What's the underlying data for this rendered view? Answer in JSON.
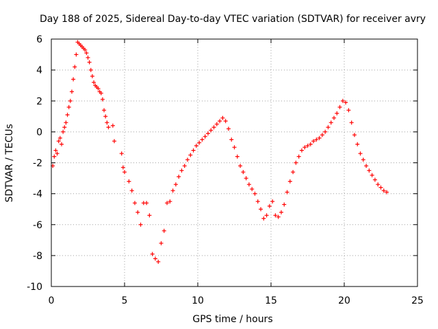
{
  "chart_data": {
    "type": "scatter",
    "title": "Day 188 of 2025, Sidereal Day-to-day VTEC variation (SDTVAR) for receiver avry",
    "xlabel": "GPS time / hours",
    "ylabel": "SDTVAR / TECUs",
    "xlim": [
      0,
      25
    ],
    "ylim": [
      -10,
      6
    ],
    "xticks": [
      0,
      5,
      10,
      15,
      20,
      25
    ],
    "yticks": [
      -10,
      -8,
      -6,
      -4,
      -2,
      0,
      2,
      4,
      6
    ],
    "grid": true,
    "marker": "+",
    "series_color": "#ff0000",
    "series": [
      {
        "name": "SDTVAR",
        "x": [
          0.1,
          0.2,
          0.3,
          0.4,
          0.5,
          0.6,
          0.7,
          0.8,
          0.9,
          1.0,
          1.1,
          1.2,
          1.3,
          1.4,
          1.5,
          1.6,
          1.7,
          1.8,
          1.9,
          2.0,
          2.1,
          2.2,
          2.3,
          2.4,
          2.5,
          2.6,
          2.7,
          2.8,
          2.9,
          3.0,
          3.1,
          3.2,
          3.3,
          3.4,
          3.5,
          3.6,
          3.7,
          3.8,
          3.9,
          4.2,
          4.3,
          4.8,
          4.9,
          5.0,
          5.3,
          5.5,
          5.7,
          5.9,
          6.1,
          6.3,
          6.5,
          6.7,
          6.9,
          7.1,
          7.3,
          7.5,
          7.7,
          7.9,
          8.1,
          8.3,
          8.5,
          8.7,
          8.9,
          9.1,
          9.3,
          9.5,
          9.7,
          9.9,
          10.1,
          10.3,
          10.5,
          10.7,
          10.9,
          11.1,
          11.3,
          11.5,
          11.7,
          11.9,
          12.1,
          12.3,
          12.5,
          12.7,
          12.9,
          13.1,
          13.3,
          13.5,
          13.7,
          13.9,
          14.1,
          14.3,
          14.5,
          14.7,
          14.9,
          15.1,
          15.3,
          15.5,
          15.7,
          15.9,
          16.1,
          16.3,
          16.5,
          16.7,
          16.9,
          17.1,
          17.3,
          17.5,
          17.7,
          17.9,
          18.1,
          18.3,
          18.5,
          18.7,
          18.9,
          19.1,
          19.3,
          19.5,
          19.7,
          19.9,
          20.1,
          20.3,
          20.5,
          20.7,
          20.9,
          21.1,
          21.3,
          21.5,
          21.7,
          21.9,
          22.1,
          22.3,
          22.5,
          22.7,
          22.9
        ],
        "y": [
          -2.2,
          -1.6,
          -1.2,
          -1.4,
          -0.6,
          -0.4,
          -0.8,
          0.0,
          0.3,
          0.6,
          1.1,
          1.6,
          2.0,
          2.6,
          3.4,
          4.2,
          5.0,
          5.8,
          5.7,
          5.6,
          5.5,
          5.4,
          5.3,
          5.1,
          4.8,
          4.5,
          4.0,
          3.6,
          3.2,
          3.0,
          2.9,
          2.8,
          2.6,
          2.5,
          2.1,
          1.4,
          1.0,
          0.6,
          0.3,
          0.4,
          -0.6,
          -1.4,
          -2.3,
          -2.6,
          -3.2,
          -3.8,
          -4.6,
          -5.2,
          -6.0,
          -4.6,
          -4.6,
          -5.4,
          -7.9,
          -8.2,
          -8.4,
          -7.2,
          -6.4,
          -4.6,
          -4.5,
          -3.8,
          -3.4,
          -2.9,
          -2.5,
          -2.2,
          -1.8,
          -1.5,
          -1.2,
          -0.9,
          -0.7,
          -0.5,
          -0.3,
          -0.1,
          0.1,
          0.3,
          0.5,
          0.7,
          0.9,
          0.7,
          0.2,
          -0.5,
          -1.0,
          -1.6,
          -2.2,
          -2.6,
          -3.0,
          -3.4,
          -3.7,
          -4.0,
          -4.5,
          -5.0,
          -5.6,
          -5.4,
          -4.8,
          -4.5,
          -5.4,
          -5.5,
          -5.2,
          -4.7,
          -3.9,
          -3.2,
          -2.6,
          -2.0,
          -1.6,
          -1.2,
          -1.0,
          -0.9,
          -0.8,
          -0.6,
          -0.5,
          -0.4,
          -0.2,
          0.0,
          0.3,
          0.6,
          0.9,
          1.2,
          1.6,
          2.0,
          1.9,
          1.4,
          0.6,
          -0.2,
          -0.8,
          -1.4,
          -1.8,
          -2.2,
          -2.5,
          -2.8,
          -3.1,
          -3.4,
          -3.6,
          -3.8,
          -3.9
        ]
      }
    ]
  }
}
